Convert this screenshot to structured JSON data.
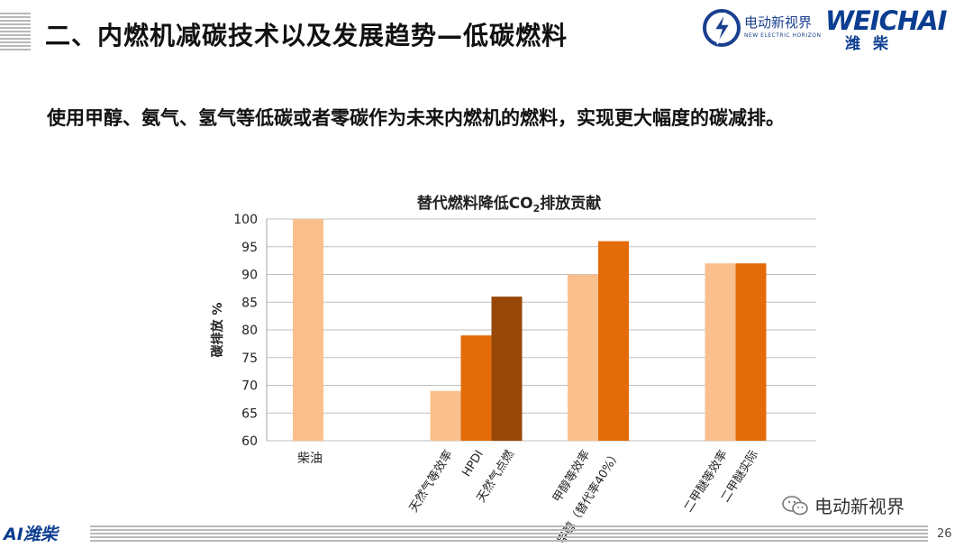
{
  "slide": {
    "title": "二、内燃机减碳技术以及发展趋势—低碳燃料",
    "subtitle": "使用甲醇、氨气、氢气等低碳或者零碳作为未来内燃机的燃料，实现更大幅度的碳减排。",
    "page_number": "26"
  },
  "logos": {
    "ev_name": "电动新视界",
    "ev_subname": "NEW ELECTRIC HORIZON",
    "weichai_latin": "WEICHAI",
    "weichai_cn": "潍柴",
    "footer_logo": "AI潍柴"
  },
  "watermark": {
    "text": "电动新视界",
    "icon": "wechat-icon"
  },
  "colors": {
    "light": "#F9C08E",
    "medium": "#E36C09",
    "dark": "#984806",
    "grid": "#BFBFBF",
    "brand": "#0B3D91"
  },
  "chart_data": {
    "type": "bar",
    "title_main": "替代燃料降低CO",
    "title_sub": "2",
    "title_end": "排放贡献",
    "xlabel": "",
    "ylabel": "碳排放 %",
    "ylim": [
      60,
      100
    ],
    "yticks": [
      60,
      65,
      70,
      75,
      80,
      85,
      90,
      95,
      100
    ],
    "grid": true,
    "legend": "none",
    "groups": [
      {
        "bars": [
          {
            "label": "柴油",
            "value": 100,
            "color": "light"
          },
          {
            "label": "",
            "value": 60,
            "color": "medium"
          }
        ]
      },
      {
        "bars": [
          {
            "label": "天然气等效率",
            "value": 69,
            "color": "light"
          },
          {
            "label": "HPDI",
            "value": 79,
            "color": "medium"
          },
          {
            "label": "天然气点燃",
            "value": 86,
            "color": "dark"
          }
        ]
      },
      {
        "bars": [
          {
            "label": "甲醇等效率",
            "value": 90,
            "color": "light"
          },
          {
            "label": "甲醇（替代率40%）",
            "value": 96,
            "color": "medium"
          },
          {
            "label": "",
            "value": 60,
            "color": "dark"
          }
        ]
      },
      {
        "bars": [
          {
            "label": "二甲醚等效率",
            "value": 92,
            "color": "light"
          },
          {
            "label": "二甲醚实际",
            "value": 92,
            "color": "medium"
          },
          {
            "label": "",
            "value": 60,
            "color": "dark"
          }
        ]
      }
    ]
  }
}
